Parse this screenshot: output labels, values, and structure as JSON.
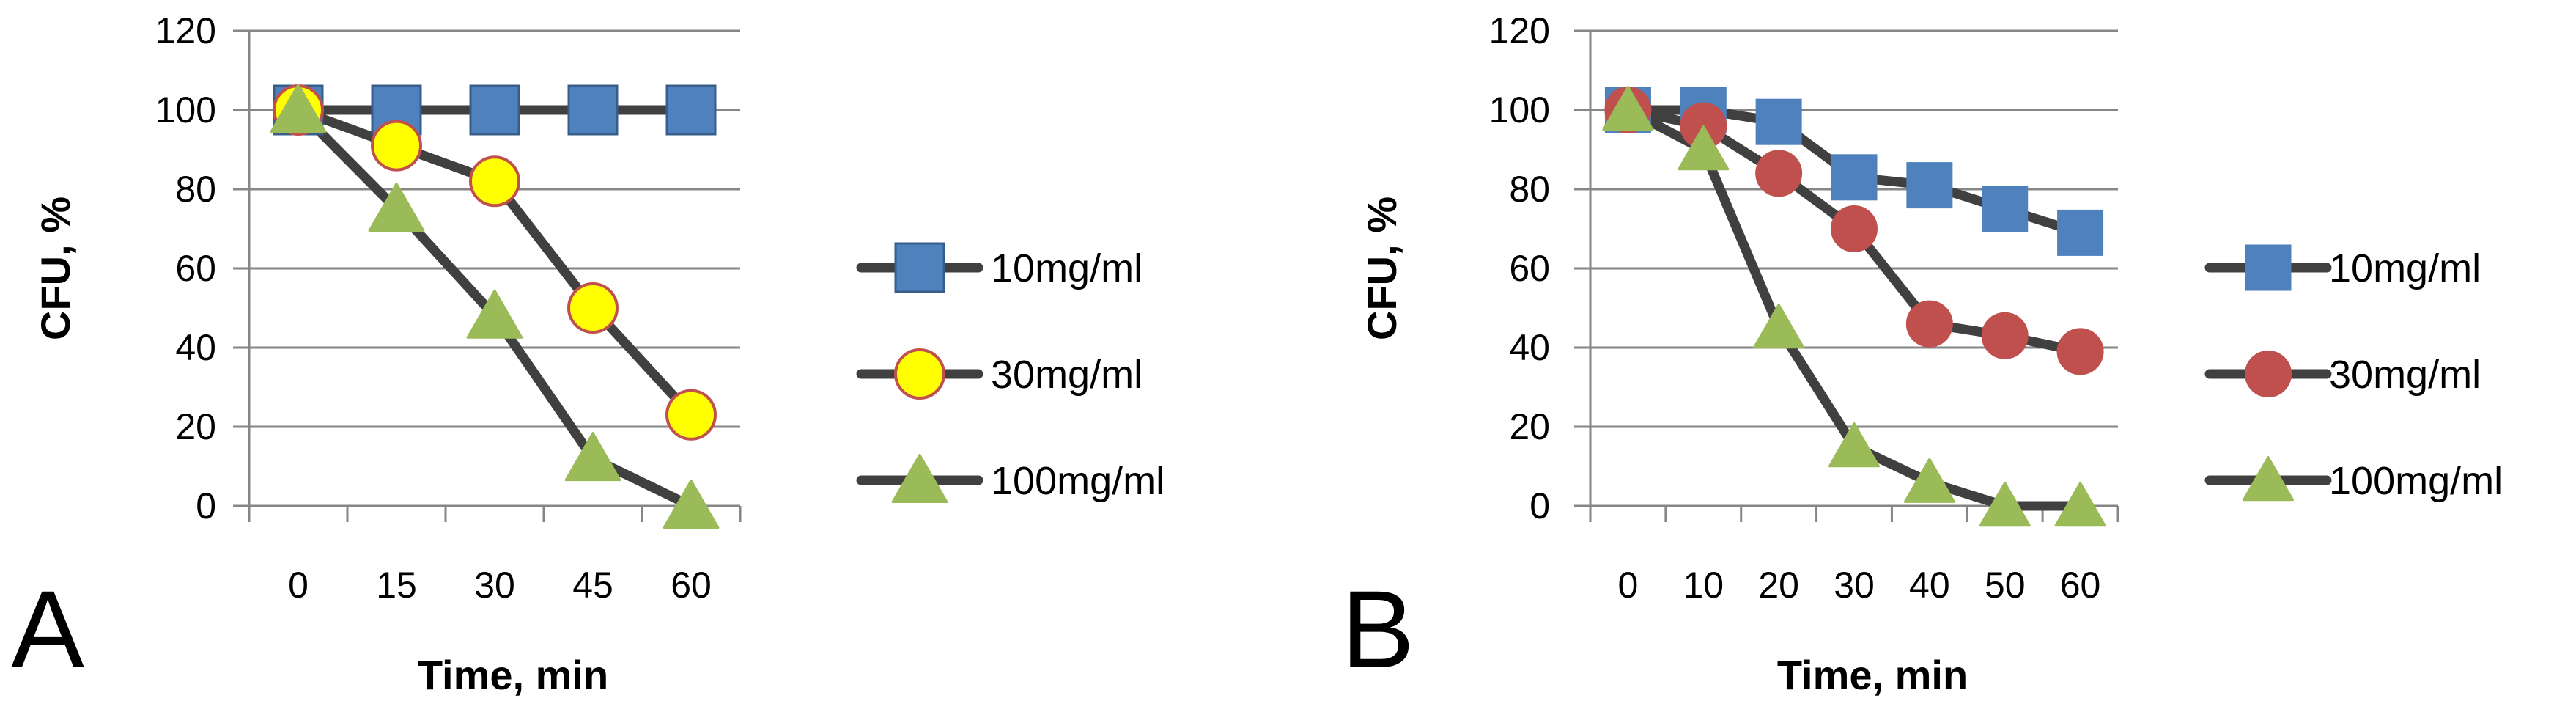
{
  "chart_data": [
    {
      "type": "line",
      "panel": "A",
      "xlabel": "Time, min",
      "ylabel": "CFU, %",
      "categories": [
        "0",
        "15",
        "30",
        "45",
        "60"
      ],
      "yticks": [
        "0",
        "20",
        "40",
        "60",
        "80",
        "100",
        "120"
      ],
      "ylim": [
        0,
        120
      ],
      "grid": true,
      "legend_position": "right",
      "series": [
        {
          "name": "10mg/ml",
          "marker": "square",
          "fill": "#4f81bd",
          "stroke": "#385d8a",
          "values": [
            100,
            100,
            100,
            100,
            100
          ]
        },
        {
          "name": "30mg/ml",
          "marker": "circle",
          "fill": "#ffff00",
          "stroke": "#c0504d",
          "values": [
            100,
            91,
            82,
            50,
            23
          ]
        },
        {
          "name": "100mg/ml",
          "marker": "triangle",
          "fill": "#9bbb59",
          "stroke": "#9bbb59",
          "values": [
            100,
            75,
            48,
            12,
            0
          ]
        }
      ]
    },
    {
      "type": "line",
      "panel": "B",
      "xlabel": "Time, min",
      "ylabel": "CFU, %",
      "categories": [
        "0",
        "10",
        "20",
        "30",
        "40",
        "50",
        "60"
      ],
      "yticks": [
        "0",
        "20",
        "40",
        "60",
        "80",
        "100",
        "120"
      ],
      "ylim": [
        0,
        120
      ],
      "grid": true,
      "legend_position": "right",
      "series": [
        {
          "name": "10mg/ml",
          "marker": "square",
          "fill": "#4f81bd",
          "stroke": "#4f81bd",
          "values": [
            100,
            100,
            97,
            83,
            81,
            75,
            69
          ]
        },
        {
          "name": "30mg/ml",
          "marker": "circle",
          "fill": "#c0504d",
          "stroke": "#c0504d",
          "values": [
            100,
            96,
            84,
            70,
            46,
            43,
            39
          ]
        },
        {
          "name": "100mg/ml",
          "marker": "triangle",
          "fill": "#9bbb59",
          "stroke": "#9bbb59",
          "values": [
            100,
            90,
            45,
            15,
            6,
            0,
            0
          ]
        }
      ]
    }
  ]
}
